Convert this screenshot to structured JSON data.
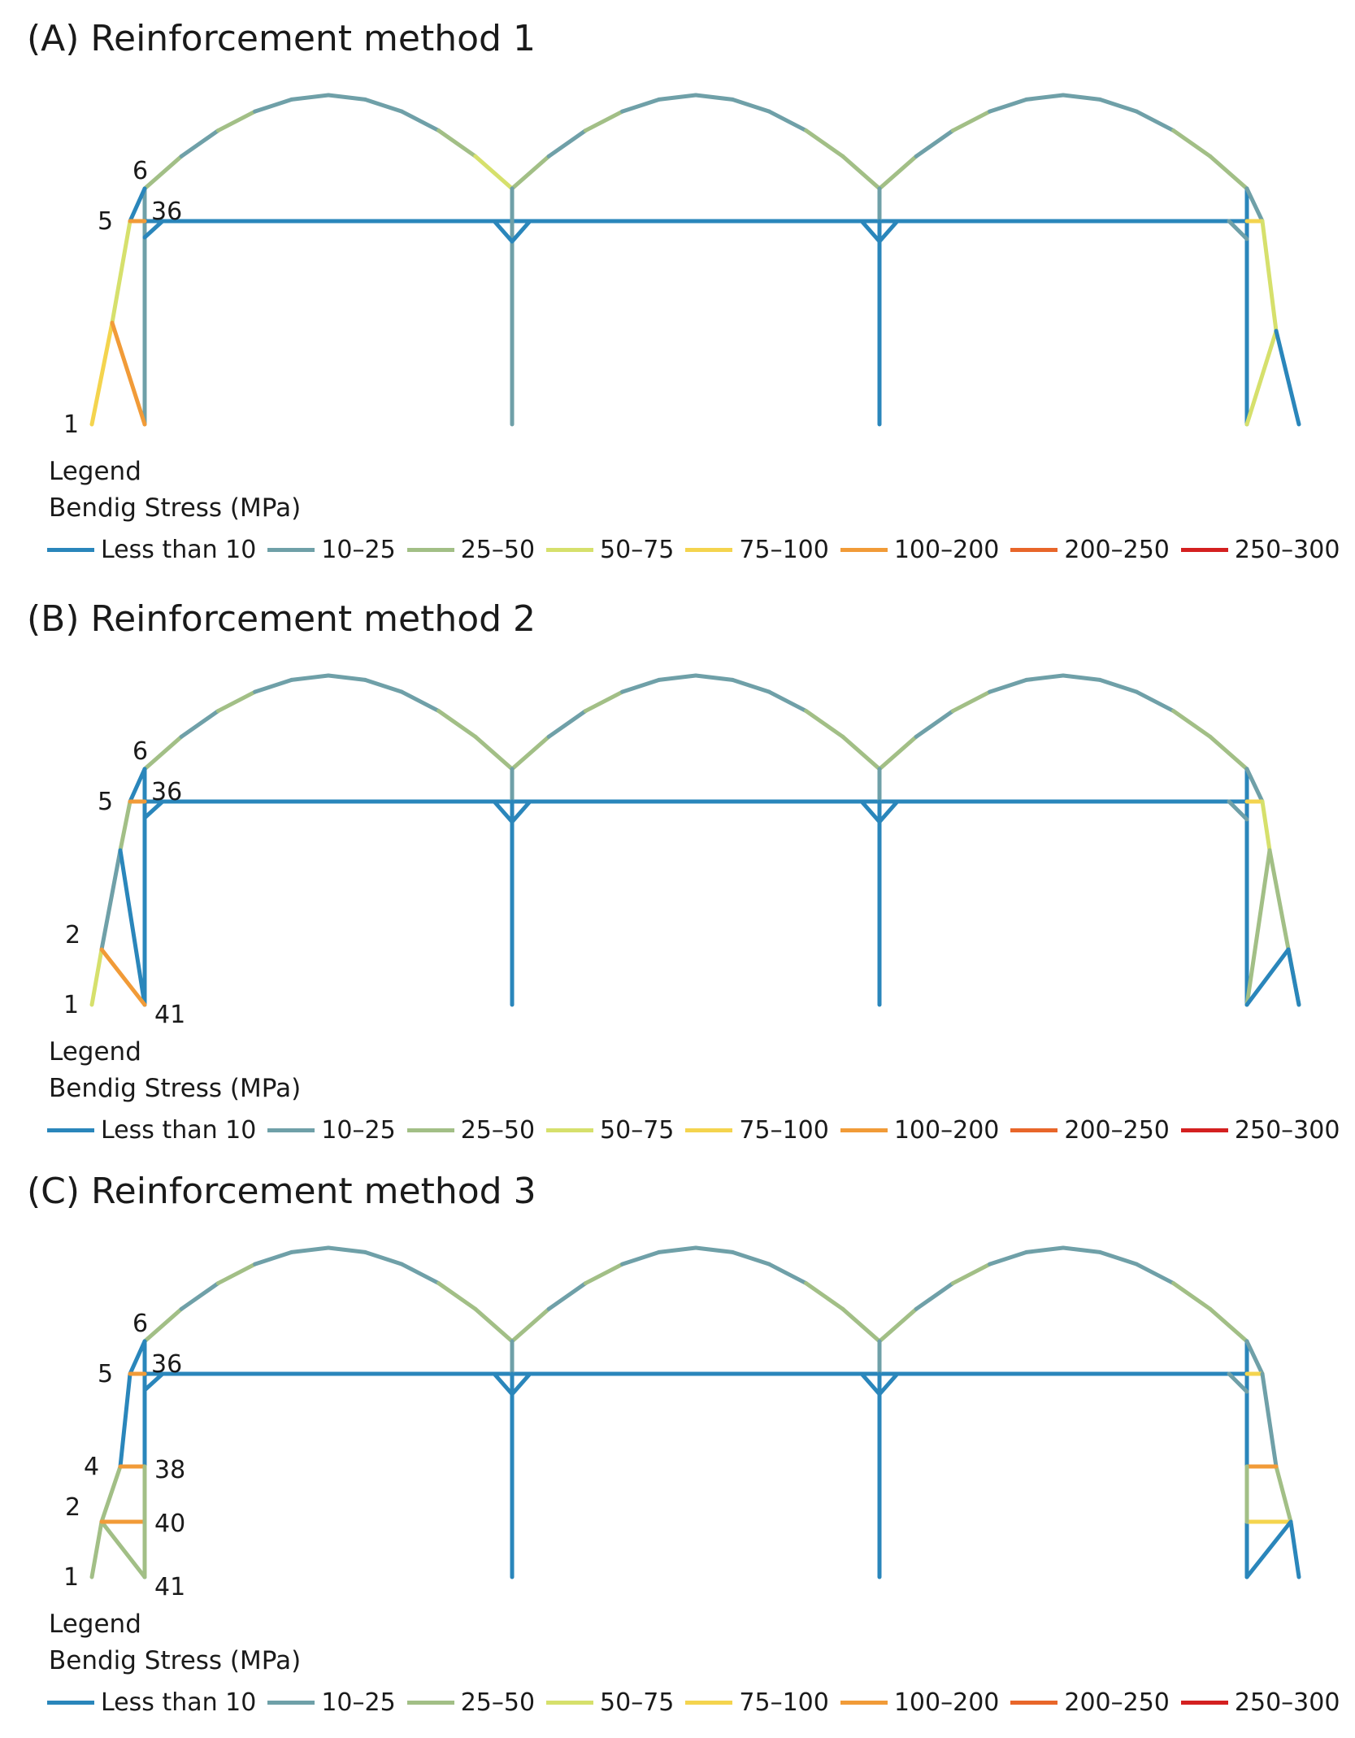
{
  "colors": {
    "lt10": "#2a86bb",
    "c10_25": "#6fa0a8",
    "c25_50": "#a2bf86",
    "c50_75": "#d6e06c",
    "c75_100": "#f4d44e",
    "c100_200": "#f19b38",
    "c200_250": "#e8662a",
    "c250_300": "#d42020"
  },
  "legend": {
    "title": "Legend",
    "subtitle": "Bendig Stress (MPa)",
    "items": [
      {
        "label": "Less than 10",
        "color": "#2a86bb"
      },
      {
        "label": "10–25",
        "color": "#6fa0a8"
      },
      {
        "label": "25–50",
        "color": "#a2bf86"
      },
      {
        "label": "50–75",
        "color": "#d6e06c"
      },
      {
        "label": "75–100",
        "color": "#f4d44e"
      },
      {
        "label": "100–200",
        "color": "#f19b38"
      },
      {
        "label": "200–250",
        "color": "#e8662a"
      },
      {
        "label": "250–300",
        "color": "#d42020"
      }
    ]
  },
  "panels": [
    {
      "title": "(A) Reinforcement method 1",
      "node_labels": [
        {
          "text": "6",
          "node": "n6"
        },
        {
          "text": "5",
          "node": "n5"
        },
        {
          "text": "36",
          "node": "n36"
        },
        {
          "text": "1",
          "node": "n1"
        }
      ]
    },
    {
      "title": "(B) Reinforcement method 2",
      "node_labels": [
        {
          "text": "6",
          "node": "n6"
        },
        {
          "text": "5",
          "node": "n5"
        },
        {
          "text": "36",
          "node": "n36"
        },
        {
          "text": "2",
          "node": "n2"
        },
        {
          "text": "1",
          "node": "n1"
        },
        {
          "text": "41",
          "node": "n41"
        }
      ]
    },
    {
      "title": "(C) Reinforcement method 3",
      "node_labels": [
        {
          "text": "6",
          "node": "n6"
        },
        {
          "text": "5",
          "node": "n5"
        },
        {
          "text": "36",
          "node": "n36"
        },
        {
          "text": "4",
          "node": "n4"
        },
        {
          "text": "38",
          "node": "n38"
        },
        {
          "text": "2",
          "node": "n2"
        },
        {
          "text": "40",
          "node": "n40"
        },
        {
          "text": "1",
          "node": "n1"
        },
        {
          "text": "41",
          "node": "n41"
        }
      ]
    }
  ]
}
